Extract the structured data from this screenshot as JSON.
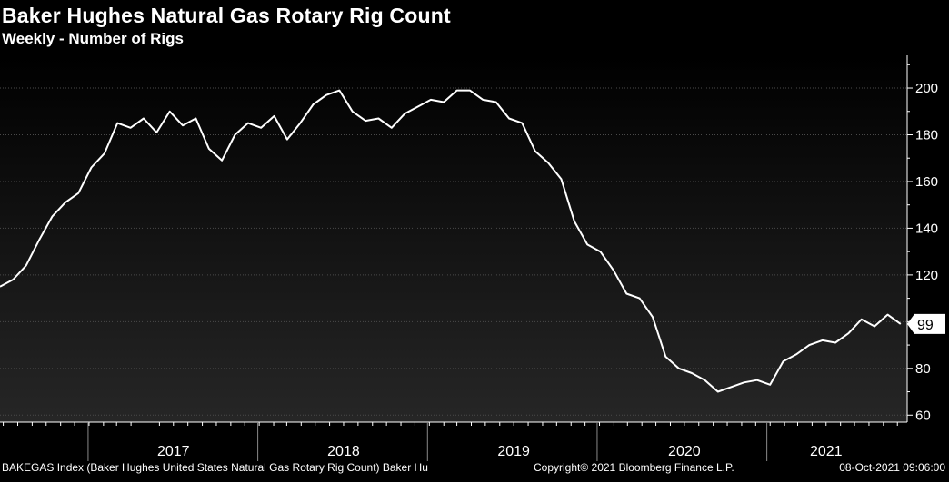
{
  "header": {
    "title": "Baker Hughes Natural Gas Rotary Rig Count",
    "subtitle": "Weekly - Number of Rigs"
  },
  "footer": {
    "source": "BAKEGAS Index (Baker Hughes United States Natural Gas Rotary Rig Count) Baker Hu",
    "copyright": "Copyright© 2021 Bloomberg Finance L.P.",
    "timestamp": "08-Oct-2021 09:06:00"
  },
  "colors": {
    "background_top": "#000000",
    "background_bottom": "#262626",
    "line": "#ffffff",
    "grid": "#4a4a4a"
  },
  "chart_data": {
    "type": "line",
    "title": "Baker Hughes Natural Gas Rotary Rig Count",
    "subtitle": "Weekly - Number of Rigs",
    "xlabel": "",
    "ylabel": "",
    "ylim": [
      57,
      214
    ],
    "xlim": [
      "2016-06-24",
      "2021-10-22"
    ],
    "y_ticks": [
      60,
      80,
      100,
      120,
      140,
      160,
      180,
      200
    ],
    "x_tick_labels": [
      "2017",
      "2018",
      "2019",
      "2020",
      "2021"
    ],
    "x_tick_dates": [
      "2017-07-01",
      "2018-07-01",
      "2019-07-01",
      "2020-07-01",
      "2021-05-01"
    ],
    "x_boundaries": [
      "2016-12-30",
      "2017-12-29",
      "2018-12-28",
      "2019-12-27",
      "2020-12-25"
    ],
    "grid": "horizontal dashed",
    "last_value": "99",
    "series": [
      {
        "x": [
          "2016-06-24",
          "2016-07-22",
          "2016-08-19",
          "2016-09-16",
          "2016-10-14",
          "2016-11-11",
          "2016-12-09",
          "2017-01-06",
          "2017-02-03",
          "2017-03-03",
          "2017-03-31",
          "2017-04-28",
          "2017-05-26",
          "2017-06-23",
          "2017-07-21",
          "2017-08-18",
          "2017-09-15",
          "2017-10-13",
          "2017-11-10",
          "2017-12-08",
          "2018-01-05",
          "2018-02-02",
          "2018-03-02",
          "2018-03-30",
          "2018-04-27",
          "2018-05-25",
          "2018-06-22",
          "2018-07-20",
          "2018-08-17",
          "2018-09-14",
          "2018-10-12",
          "2018-11-09",
          "2018-12-07",
          "2019-01-04",
          "2019-02-01",
          "2019-03-01",
          "2019-03-29",
          "2019-04-26",
          "2019-05-24",
          "2019-06-21",
          "2019-07-19",
          "2019-08-16",
          "2019-09-13",
          "2019-10-11",
          "2019-11-08",
          "2019-12-06",
          "2020-01-03",
          "2020-01-31",
          "2020-02-28",
          "2020-03-27",
          "2020-04-24",
          "2020-05-22",
          "2020-06-19",
          "2020-07-17",
          "2020-08-14",
          "2020-09-11",
          "2020-10-09",
          "2020-11-06",
          "2020-12-04",
          "2021-01-01",
          "2021-01-29",
          "2021-02-26",
          "2021-03-26",
          "2021-04-23",
          "2021-05-21",
          "2021-06-18",
          "2021-07-16",
          "2021-08-13",
          "2021-09-10",
          "2021-10-08"
        ],
        "values": [
          115,
          118,
          124,
          135,
          145,
          151,
          155,
          166,
          172,
          185,
          183,
          187,
          181,
          190,
          184,
          187,
          174,
          169,
          180,
          185,
          183,
          188,
          178,
          185,
          193,
          197,
          199,
          190,
          186,
          187,
          183,
          189,
          192,
          195,
          194,
          199,
          199,
          195,
          194,
          187,
          185,
          173,
          168,
          161,
          143,
          133,
          130,
          122,
          112,
          110,
          102,
          85,
          80,
          78,
          75,
          70,
          72,
          74,
          75,
          73,
          83,
          86,
          90,
          92,
          91,
          95,
          101,
          98,
          103,
          99
        ]
      }
    ]
  }
}
